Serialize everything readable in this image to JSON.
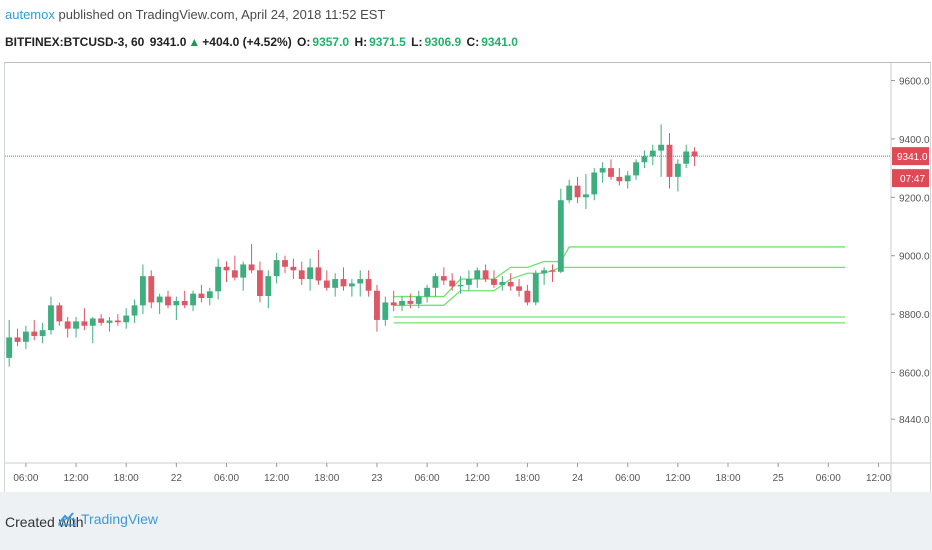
{
  "header": {
    "author": "autemox",
    "published_text": "published on TradingView.com, April 24, 2018 11:52 EST"
  },
  "symbol_bar": {
    "symbol": "BITFINEX:BTCUSD-3, 60",
    "last": "9341.0",
    "change": "+404.0 (+4.52%)",
    "open_label": "O:",
    "open": "9357.0",
    "high_label": "H:",
    "high": "9371.5",
    "low_label": "L:",
    "low": "9306.9",
    "close_label": "C:",
    "close": "9341.0"
  },
  "footer": {
    "created_with": "Created with",
    "brand": "TradingView"
  },
  "colors": {
    "up": "#3fae7f",
    "down": "#de5766",
    "level_line": "#6fe36f",
    "price_line": "#e04a57",
    "axis_text": "#555555"
  },
  "chart_data": {
    "type": "candlestick",
    "ylim": [
      8290,
      9660
    ],
    "y_ticks": [
      {
        "value": 9600,
        "label": "9600.0"
      },
      {
        "value": 9400,
        "label": "9400.0"
      },
      {
        "value": 9200,
        "label": "9200.0"
      },
      {
        "value": 9000,
        "label": "9000.0"
      },
      {
        "value": 8800,
        "label": "8800.0"
      },
      {
        "value": 8600,
        "label": "8600.0"
      },
      {
        "value": 8440,
        "label": "8440.0"
      }
    ],
    "x_ticks": [
      {
        "bar": 2,
        "label": "06:00"
      },
      {
        "bar": 8,
        "label": "12:00"
      },
      {
        "bar": 14,
        "label": "18:00"
      },
      {
        "bar": 20,
        "label": "22"
      },
      {
        "bar": 26,
        "label": "06:00"
      },
      {
        "bar": 32,
        "label": "12:00"
      },
      {
        "bar": 38,
        "label": "18:00"
      },
      {
        "bar": 44,
        "label": "23"
      },
      {
        "bar": 50,
        "label": "06:00"
      },
      {
        "bar": 56,
        "label": "12:00"
      },
      {
        "bar": 62,
        "label": "18:00"
      },
      {
        "bar": 68,
        "label": "24"
      },
      {
        "bar": 74,
        "label": "06:00"
      },
      {
        "bar": 80,
        "label": "12:00"
      },
      {
        "bar": 86,
        "label": "18:00"
      },
      {
        "bar": 92,
        "label": "25"
      },
      {
        "bar": 98,
        "label": "06:00"
      },
      {
        "bar": 104,
        "label": "12:00"
      }
    ],
    "bar_count_visible": 106,
    "candles": [
      [
        8650,
        8780,
        8620,
        8720
      ],
      [
        8720,
        8750,
        8690,
        8705
      ],
      [
        8705,
        8760,
        8680,
        8740
      ],
      [
        8740,
        8780,
        8710,
        8725
      ],
      [
        8725,
        8770,
        8700,
        8745
      ],
      [
        8745,
        8860,
        8730,
        8830
      ],
      [
        8830,
        8840,
        8760,
        8775
      ],
      [
        8775,
        8790,
        8720,
        8750
      ],
      [
        8750,
        8790,
        8720,
        8775
      ],
      [
        8775,
        8820,
        8745,
        8760
      ],
      [
        8760,
        8790,
        8700,
        8785
      ],
      [
        8785,
        8800,
        8760,
        8770
      ],
      [
        8770,
        8790,
        8740,
        8778
      ],
      [
        8778,
        8800,
        8760,
        8772
      ],
      [
        8772,
        8820,
        8750,
        8795
      ],
      [
        8795,
        8850,
        8770,
        8830
      ],
      [
        8830,
        8970,
        8800,
        8930
      ],
      [
        8930,
        8950,
        8820,
        8840
      ],
      [
        8840,
        8870,
        8800,
        8860
      ],
      [
        8860,
        8880,
        8820,
        8830
      ],
      [
        8830,
        8860,
        8780,
        8845
      ],
      [
        8845,
        8880,
        8820,
        8830
      ],
      [
        8830,
        8880,
        8810,
        8870
      ],
      [
        8870,
        8900,
        8840,
        8855
      ],
      [
        8855,
        8890,
        8830,
        8878
      ],
      [
        8878,
        8990,
        8850,
        8962
      ],
      [
        8962,
        8980,
        8910,
        8950
      ],
      [
        8950,
        9000,
        8915,
        8925
      ],
      [
        8925,
        8980,
        8880,
        8970
      ],
      [
        8970,
        9040,
        8940,
        8950
      ],
      [
        8950,
        8980,
        8840,
        8862
      ],
      [
        8862,
        8950,
        8820,
        8930
      ],
      [
        8930,
        9010,
        8905,
        8985
      ],
      [
        8985,
        9000,
        8940,
        8962
      ],
      [
        8962,
        8990,
        8920,
        8950
      ],
      [
        8950,
        8980,
        8900,
        8920
      ],
      [
        8920,
        8990,
        8880,
        8960
      ],
      [
        8960,
        9020,
        8900,
        8915
      ],
      [
        8915,
        8950,
        8880,
        8890
      ],
      [
        8890,
        8940,
        8860,
        8920
      ],
      [
        8920,
        8960,
        8880,
        8895
      ],
      [
        8895,
        8920,
        8860,
        8905
      ],
      [
        8905,
        8950,
        8860,
        8920
      ],
      [
        8920,
        8950,
        8860,
        8880
      ],
      [
        8880,
        8900,
        8740,
        8780
      ],
      [
        8780,
        8860,
        8760,
        8840
      ],
      [
        8840,
        8880,
        8810,
        8830
      ],
      [
        8830,
        8860,
        8810,
        8845
      ],
      [
        8845,
        8870,
        8820,
        8835
      ],
      [
        8835,
        8880,
        8820,
        8860
      ],
      [
        8860,
        8900,
        8840,
        8890
      ],
      [
        8890,
        8940,
        8860,
        8930
      ],
      [
        8930,
        8960,
        8900,
        8915
      ],
      [
        8915,
        8940,
        8880,
        8895
      ],
      [
        8895,
        8930,
        8870,
        8900
      ],
      [
        8900,
        8950,
        8880,
        8920
      ],
      [
        8920,
        8960,
        8890,
        8950
      ],
      [
        8950,
        8970,
        8910,
        8920
      ],
      [
        8920,
        8950,
        8890,
        8900
      ],
      [
        8900,
        8930,
        8880,
        8910
      ],
      [
        8910,
        8940,
        8880,
        8895
      ],
      [
        8895,
        8920,
        8860,
        8880
      ],
      [
        8880,
        8900,
        8830,
        8840
      ],
      [
        8840,
        8950,
        8830,
        8940
      ],
      [
        8940,
        8960,
        8900,
        8950
      ],
      [
        8950,
        8970,
        8910,
        8945
      ],
      [
        8945,
        9230,
        8940,
        9190
      ],
      [
        9190,
        9260,
        9180,
        9240
      ],
      [
        9240,
        9270,
        9180,
        9200
      ],
      [
        9200,
        9280,
        9160,
        9210
      ],
      [
        9210,
        9300,
        9190,
        9285
      ],
      [
        9285,
        9320,
        9250,
        9300
      ],
      [
        9300,
        9330,
        9260,
        9270
      ],
      [
        9270,
        9300,
        9240,
        9255
      ],
      [
        9255,
        9290,
        9230,
        9275
      ],
      [
        9275,
        9330,
        9260,
        9320
      ],
      [
        9320,
        9360,
        9300,
        9340
      ],
      [
        9340,
        9380,
        9310,
        9360
      ],
      [
        9360,
        9450,
        9270,
        9380
      ],
      [
        9380,
        9420,
        9230,
        9270
      ],
      [
        9270,
        9330,
        9220,
        9315
      ],
      [
        9315,
        9380,
        9300,
        9357
      ],
      [
        9357,
        9371.5,
        9306.9,
        9341
      ]
    ],
    "levels": [
      {
        "name": "upper-step",
        "points": [
          [
            46,
            8860
          ],
          [
            52,
            8860
          ],
          [
            54,
            8920
          ],
          [
            58,
            8920
          ],
          [
            60,
            8960
          ],
          [
            62,
            8960
          ],
          [
            64,
            8980
          ],
          [
            66,
            8980
          ],
          [
            67,
            9030
          ],
          [
            100,
            9030
          ]
        ]
      },
      {
        "name": "upper-mid",
        "points": [
          [
            46,
            8830
          ],
          [
            52,
            8830
          ],
          [
            54,
            8880
          ],
          [
            58,
            8880
          ],
          [
            60,
            8920
          ],
          [
            62,
            8940
          ],
          [
            64,
            8940
          ],
          [
            66,
            8960
          ],
          [
            100,
            8960
          ]
        ]
      },
      {
        "name": "lower-1",
        "points": [
          [
            46,
            8790
          ],
          [
            100,
            8790
          ]
        ]
      },
      {
        "name": "lower-2",
        "points": [
          [
            46,
            8770
          ],
          [
            100,
            8770
          ]
        ]
      }
    ],
    "last_price": {
      "value": 9341,
      "label": "9341.0",
      "countdown": "07:47"
    }
  }
}
